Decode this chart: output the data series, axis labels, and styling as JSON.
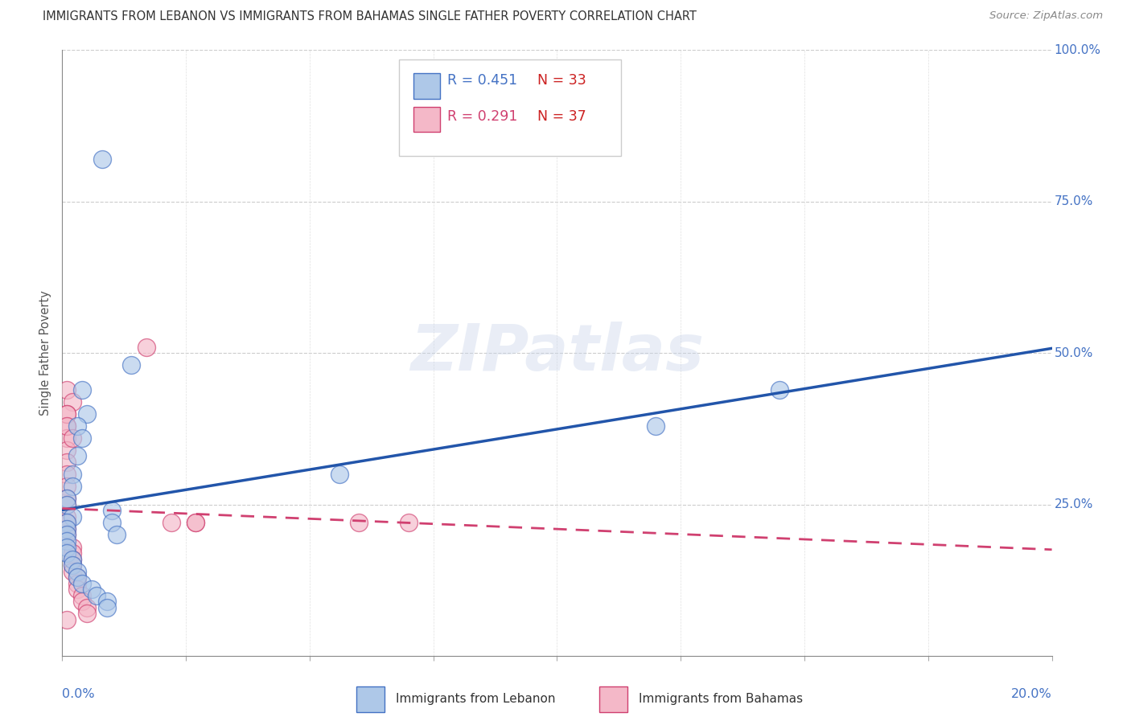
{
  "title": "IMMIGRANTS FROM LEBANON VS IMMIGRANTS FROM BAHAMAS SINGLE FATHER POVERTY CORRELATION CHART",
  "source": "Source: ZipAtlas.com",
  "ylabel": "Single Father Poverty",
  "legend_blue_r": "R = 0.451",
  "legend_blue_n": "N = 33",
  "legend_pink_r": "R = 0.291",
  "legend_pink_n": "N = 37",
  "legend_label_blue": "Immigrants from Lebanon",
  "legend_label_pink": "Immigrants from Bahamas",
  "watermark": "ZIPatlas",
  "blue_fill": "#aec8e8",
  "blue_edge": "#4472c4",
  "pink_fill": "#f4b8c8",
  "pink_edge": "#d04070",
  "blue_line": "#2255aa",
  "pink_line": "#d04070",
  "xlim": [
    0.0,
    0.2
  ],
  "ylim": [
    0.0,
    1.0
  ],
  "blue_points_x": [
    0.008,
    0.014,
    0.004,
    0.005,
    0.003,
    0.004,
    0.003,
    0.002,
    0.002,
    0.001,
    0.001,
    0.002,
    0.001,
    0.001,
    0.001,
    0.001,
    0.001,
    0.001,
    0.002,
    0.002,
    0.003,
    0.003,
    0.004,
    0.006,
    0.007,
    0.009,
    0.009,
    0.01,
    0.01,
    0.011,
    0.056,
    0.12,
    0.145
  ],
  "blue_points_y": [
    0.82,
    0.48,
    0.44,
    0.4,
    0.38,
    0.36,
    0.33,
    0.3,
    0.28,
    0.26,
    0.25,
    0.23,
    0.22,
    0.21,
    0.2,
    0.19,
    0.18,
    0.17,
    0.16,
    0.15,
    0.14,
    0.13,
    0.12,
    0.11,
    0.1,
    0.09,
    0.08,
    0.24,
    0.22,
    0.2,
    0.3,
    0.38,
    0.44
  ],
  "pink_points_x": [
    0.001,
    0.002,
    0.001,
    0.001,
    0.001,
    0.001,
    0.001,
    0.001,
    0.001,
    0.001,
    0.001,
    0.001,
    0.001,
    0.001,
    0.001,
    0.002,
    0.002,
    0.002,
    0.002,
    0.002,
    0.003,
    0.003,
    0.003,
    0.004,
    0.004,
    0.005,
    0.005,
    0.017,
    0.022,
    0.027,
    0.027,
    0.06,
    0.07,
    0.001,
    0.001,
    0.001,
    0.002
  ],
  "pink_points_y": [
    0.44,
    0.42,
    0.4,
    0.38,
    0.36,
    0.34,
    0.32,
    0.3,
    0.28,
    0.26,
    0.25,
    0.23,
    0.22,
    0.21,
    0.2,
    0.18,
    0.17,
    0.16,
    0.15,
    0.14,
    0.13,
    0.12,
    0.11,
    0.1,
    0.09,
    0.08,
    0.07,
    0.51,
    0.22,
    0.22,
    0.22,
    0.22,
    0.22,
    0.06,
    0.4,
    0.38,
    0.36
  ]
}
